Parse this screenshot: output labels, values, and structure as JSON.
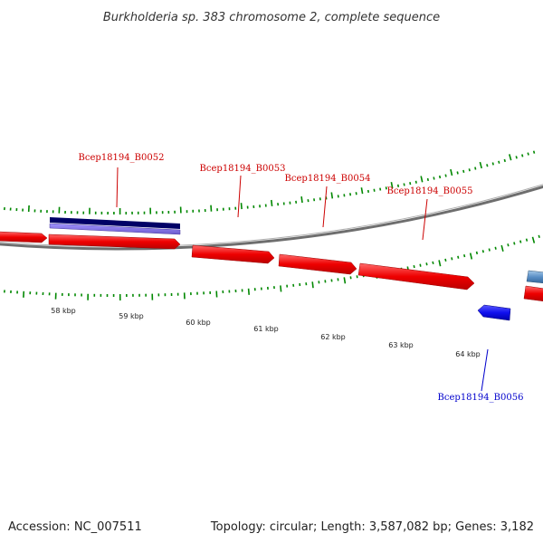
{
  "title": "Burkholderia sp. 383 chromosome 2, complete sequence",
  "footer": {
    "accession": "Accession: NC_007511",
    "stats": "Topology: circular; Length: 3,587,082 bp; Genes: 3,182"
  },
  "colors": {
    "forward_gene": "#ff0000",
    "reverse_gene": "#0000ff",
    "reverse_label": "#0000cc",
    "forward_label": "#cc0000",
    "tick": "#008800",
    "backbone": "#777777",
    "selected_dark": "#000066",
    "selected_light": "#7b68ee"
  },
  "scale": {
    "ticks": [
      {
        "label": "58 kbp"
      },
      {
        "label": "59 kbp"
      },
      {
        "label": "60 kbp"
      },
      {
        "label": "61 kbp"
      },
      {
        "label": "62 kbp"
      },
      {
        "label": "63 kbp"
      },
      {
        "label": "64 kbp"
      }
    ]
  },
  "genes": [
    {
      "name": "Bcep18194_B0052",
      "strand": "forward"
    },
    {
      "name": "Bcep18194_B0053",
      "strand": "forward"
    },
    {
      "name": "Bcep18194_B0054",
      "strand": "forward"
    },
    {
      "name": "Bcep18194_B0055",
      "strand": "forward"
    },
    {
      "name": "Bcep18194_B0056",
      "strand": "reverse"
    }
  ]
}
